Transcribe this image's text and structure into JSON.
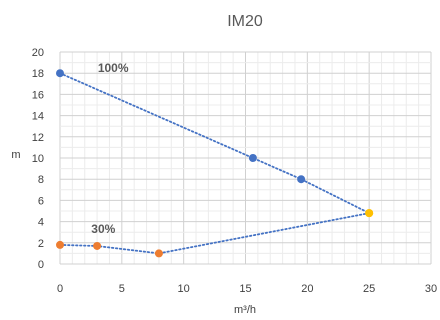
{
  "chart_data": {
    "type": "scatter",
    "title": "IM20",
    "xlabel": "m³/h",
    "ylabel": "m",
    "xlim": [
      0,
      30
    ],
    "ylim": [
      0,
      20
    ],
    "x_ticks": [
      0,
      5,
      10,
      15,
      20,
      25,
      30
    ],
    "y_ticks": [
      0,
      2,
      4,
      6,
      8,
      10,
      12,
      14,
      16,
      18,
      20
    ],
    "grid": true,
    "legend": "none",
    "annotations": [
      {
        "text": "100%",
        "x": 4.3,
        "y": 18.5
      },
      {
        "text": "30%",
        "x": 3.5,
        "y": 3.3
      }
    ],
    "series": [
      {
        "line_color": "#4472C4",
        "point_colors": [
          "#4472C4",
          "#4472C4",
          "#4472C4",
          "#FFC000"
        ],
        "points": [
          {
            "x": 0,
            "y": 18
          },
          {
            "x": 15.6,
            "y": 10
          },
          {
            "x": 19.5,
            "y": 8
          },
          {
            "x": 25,
            "y": 4.8
          }
        ]
      },
      {
        "line_color": "#4472C4",
        "point_colors": [
          "#ED7D31",
          "#ED7D31",
          "#ED7D31",
          "#FFC000"
        ],
        "points": [
          {
            "x": 0,
            "y": 1.8
          },
          {
            "x": 3,
            "y": 1.7
          },
          {
            "x": 8,
            "y": 1
          },
          {
            "x": 25,
            "y": 4.8
          }
        ]
      }
    ]
  }
}
